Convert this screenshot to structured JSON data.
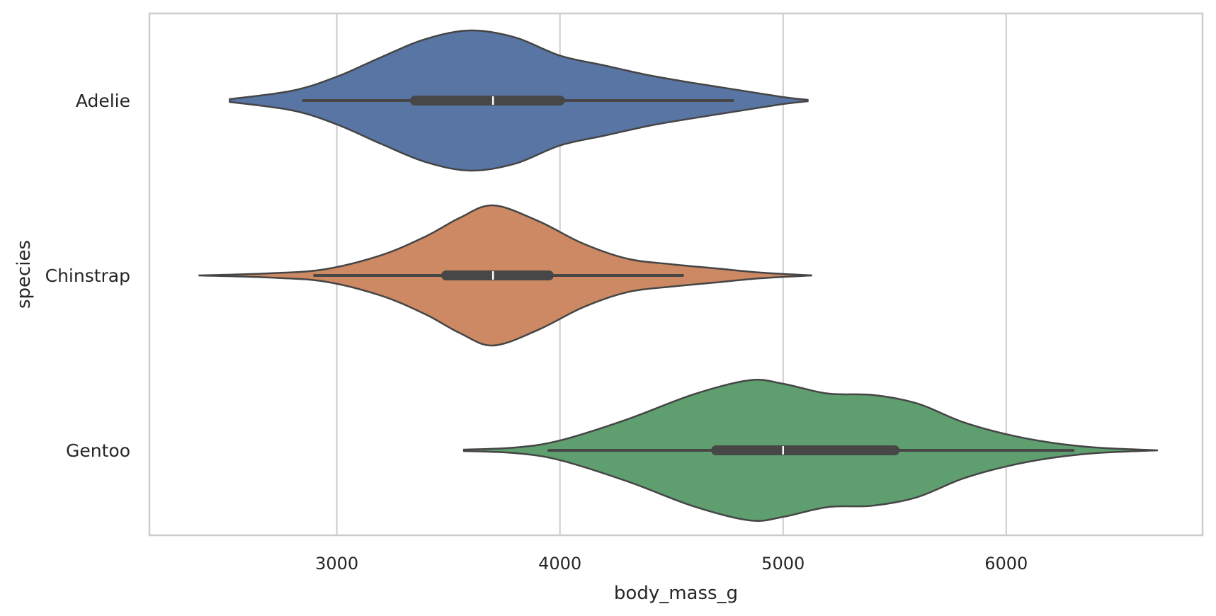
{
  "chart_data": {
    "type": "violin",
    "orientation": "horizontal",
    "title": "",
    "xlabel": "body_mass_g",
    "ylabel": "species",
    "xlim": [
      2160,
      6880
    ],
    "xticks": [
      3000,
      4000,
      5000,
      6000
    ],
    "grid": "vertical",
    "categories": [
      "Adelie",
      "Chinstrap",
      "Gentoo"
    ],
    "colors": [
      "#5875a4",
      "#cc8963",
      "#5f9e6e"
    ],
    "series": [
      {
        "category": "Adelie",
        "color": "#5875a4",
        "density": [
          [
            2520,
            0.02
          ],
          [
            2800,
            0.14
          ],
          [
            3000,
            0.34
          ],
          [
            3200,
            0.62
          ],
          [
            3400,
            0.88
          ],
          [
            3600,
            1.0
          ],
          [
            3800,
            0.9
          ],
          [
            4000,
            0.64
          ],
          [
            4200,
            0.5
          ],
          [
            4400,
            0.36
          ],
          [
            4600,
            0.25
          ],
          [
            4800,
            0.15
          ],
          [
            5000,
            0.05
          ],
          [
            5110,
            0.01
          ]
        ],
        "whisker": [
          2850,
          4775
        ],
        "box": [
          3350,
          4000
        ],
        "median": 3700
      },
      {
        "category": "Chinstrap",
        "color": "#cc8963",
        "density": [
          [
            2380,
            0.0
          ],
          [
            2700,
            0.03
          ],
          [
            2950,
            0.09
          ],
          [
            3200,
            0.29
          ],
          [
            3400,
            0.56
          ],
          [
            3550,
            0.82
          ],
          [
            3700,
            1.0
          ],
          [
            3900,
            0.78
          ],
          [
            4100,
            0.46
          ],
          [
            4300,
            0.24
          ],
          [
            4500,
            0.16
          ],
          [
            4700,
            0.1
          ],
          [
            4900,
            0.04
          ],
          [
            5130,
            0.0
          ]
        ],
        "whisker": [
          2900,
          4550
        ],
        "box": [
          3490,
          3950
        ],
        "median": 3700
      },
      {
        "category": "Gentoo",
        "color": "#5f9e6e",
        "density": [
          [
            3570,
            0.01
          ],
          [
            3800,
            0.04
          ],
          [
            4000,
            0.14
          ],
          [
            4300,
            0.44
          ],
          [
            4600,
            0.8
          ],
          [
            4850,
            1.0
          ],
          [
            5000,
            0.95
          ],
          [
            5200,
            0.81
          ],
          [
            5400,
            0.79
          ],
          [
            5600,
            0.67
          ],
          [
            5800,
            0.41
          ],
          [
            6000,
            0.23
          ],
          [
            6200,
            0.11
          ],
          [
            6400,
            0.04
          ],
          [
            6680,
            0.0
          ]
        ],
        "whisker": [
          3950,
          6300
        ],
        "box": [
          4700,
          5500
        ],
        "median": 5000
      }
    ]
  }
}
